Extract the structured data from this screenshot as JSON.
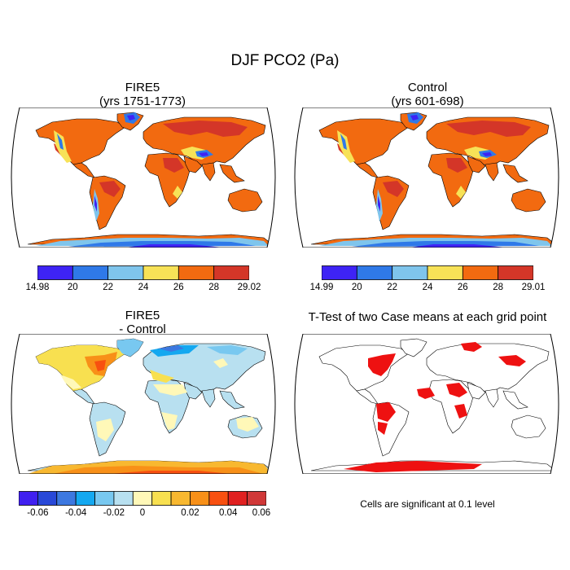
{
  "figure": {
    "title": "DJF PCO2 (Pa)",
    "note": "Cells are significant at 0.1 level"
  },
  "panels": {
    "fire5": {
      "title_line1": "FIRE5",
      "title_line2": "(yrs 1751-1773)"
    },
    "control": {
      "title_line1": "Control",
      "title_line2": "(yrs 601-698)"
    },
    "diff": {
      "title_line1": "FIRE5",
      "title_line2": "- Control"
    },
    "ttest": {
      "title": "T-Test of two Case means at each grid point"
    }
  },
  "colorbars": {
    "fire5": {
      "colors": [
        "#3e23f5",
        "#2f79e8",
        "#7fc5ec",
        "#f7e257",
        "#f26a10",
        "#d43628"
      ],
      "labels": [
        "14.98",
        "20",
        "22",
        "24",
        "26",
        "28",
        "29.02"
      ]
    },
    "control": {
      "colors": [
        "#3e23f5",
        "#2f79e8",
        "#7fc5ec",
        "#f7e257",
        "#f26a10",
        "#d43628"
      ],
      "labels": [
        "14.99",
        "20",
        "22",
        "24",
        "26",
        "28",
        "29.01"
      ]
    },
    "diff": {
      "colors": [
        "#4020f0",
        "#2848d8",
        "#3c78e0",
        "#14a8f0",
        "#78c8f0",
        "#b8e0f0",
        "#fff8b8",
        "#f8e050",
        "#f8b830",
        "#f89018",
        "#f85010",
        "#e02020",
        "#d03838"
      ],
      "labels": [
        "-0.06",
        "-0.04",
        "-0.02",
        "0",
        "0.02",
        "0.04",
        "0.06"
      ]
    }
  },
  "map_colors": {
    "ocean": "#ffffff",
    "coast": "#000000",
    "significant": "#ee1111"
  }
}
